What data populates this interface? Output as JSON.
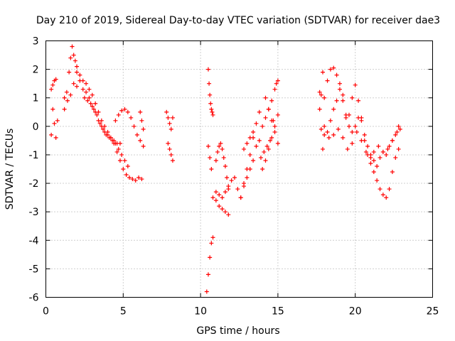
{
  "chart_data": {
    "type": "scatter",
    "title": "Day 210 of 2019, Sidereal Day-to-day VTEC variation (SDTVAR) for receiver dae3",
    "xlabel": "GPS time / hours",
    "ylabel": "SDTVAR / TECUs",
    "xlim": [
      0,
      25
    ],
    "ylim": [
      -6,
      3
    ],
    "xticks": [
      0,
      5,
      10,
      15,
      20,
      25
    ],
    "yticks": [
      -6,
      -5,
      -4,
      -3,
      -2,
      -1,
      0,
      1,
      2,
      3
    ],
    "grid": true,
    "marker": "+",
    "color": "#ff0000",
    "series": [
      {
        "name": "SDTVAR",
        "tracks": [
          {
            "x": [
              0.35,
              0.45,
              0.55,
              0.65,
              0.75
            ],
            "y": [
              -0.3,
              0.6,
              0.1,
              -0.4,
              0.2
            ]
          },
          {
            "x": [
              0.35,
              0.45,
              0.55,
              0.65
            ],
            "y": [
              1.3,
              1.45,
              1.6,
              1.65
            ]
          },
          {
            "x": [
              1.2,
              1.35,
              1.5,
              1.6,
              1.7,
              1.8,
              1.9,
              2.0
            ],
            "y": [
              0.6,
              1.2,
              1.9,
              2.4,
              2.8,
              2.5,
              2.3,
              2.1
            ]
          },
          {
            "x": [
              1.2,
              1.4,
              1.6,
              1.8,
              2.0,
              2.2,
              2.4,
              2.6,
              2.8,
              3.0,
              3.2,
              3.4,
              3.6,
              3.8,
              4.0,
              4.2,
              4.4,
              4.6,
              4.8,
              5.0,
              5.2,
              5.4,
              5.6,
              5.8,
              6.0,
              6.2
            ],
            "y": [
              1.0,
              0.9,
              1.1,
              1.5,
              1.9,
              1.8,
              1.6,
              1.5,
              1.3,
              1.1,
              0.8,
              0.5,
              0.2,
              0.0,
              -0.2,
              -0.4,
              -0.6,
              -0.9,
              -1.2,
              -1.5,
              -1.7,
              -1.8,
              -1.85,
              -1.9,
              -1.8,
              -1.85
            ]
          },
          {
            "x": [
              2.0,
              2.2,
              2.4,
              2.6,
              2.8,
              3.0,
              3.2,
              3.4,
              3.6,
              3.8,
              4.0,
              4.2,
              4.4,
              4.6,
              4.8
            ],
            "y": [
              1.4,
              1.6,
              1.3,
              1.2,
              1.0,
              0.7,
              0.5,
              0.2,
              0.0,
              -0.2,
              -0.3,
              -0.4,
              -0.5,
              -0.6,
              -0.6
            ]
          },
          {
            "x": [
              2.5,
              2.7,
              2.9,
              3.1,
              3.3,
              3.5,
              3.7,
              3.9,
              4.1,
              4.3,
              4.5,
              4.7,
              4.9,
              5.1,
              5.3
            ],
            "y": [
              1.0,
              0.9,
              0.8,
              0.6,
              0.4,
              0.1,
              -0.1,
              -0.3,
              -0.4,
              -0.5,
              -0.6,
              -0.8,
              -1.0,
              -1.2,
              -1.4
            ]
          },
          {
            "x": [
              4.5,
              4.7,
              4.9,
              5.1,
              5.3,
              5.5,
              5.7,
              5.9,
              6.1,
              6.3
            ],
            "y": [
              0.2,
              0.4,
              0.55,
              0.6,
              0.5,
              0.3,
              0.0,
              -0.3,
              -0.5,
              -0.7
            ]
          },
          {
            "x": [
              6.1,
              6.2,
              6.3
            ],
            "y": [
              0.5,
              0.2,
              -0.1
            ]
          },
          {
            "x": [
              7.8,
              7.9,
              8.0,
              8.1,
              8.2
            ],
            "y": [
              0.5,
              0.3,
              0.1,
              -0.1,
              0.3
            ]
          },
          {
            "x": [
              7.9,
              8.0,
              8.1,
              8.2
            ],
            "y": [
              -0.6,
              -0.8,
              -1.0,
              -1.2
            ]
          },
          {
            "x": [
              10.5,
              10.55,
              10.6,
              10.65,
              10.7,
              10.75,
              10.8
            ],
            "y": [
              2.0,
              1.5,
              1.1,
              0.8,
              0.6,
              0.5,
              0.4
            ]
          },
          {
            "x": [
              10.5,
              10.6,
              10.7
            ],
            "y": [
              -0.7,
              -1.1,
              -1.5
            ]
          },
          {
            "x": [
              10.4,
              10.5,
              10.6,
              10.7,
              10.8
            ],
            "y": [
              -5.8,
              -5.2,
              -4.6,
              -4.1,
              -3.9
            ]
          },
          {
            "x": [
              10.8,
              11.0,
              11.2,
              11.4,
              11.6,
              11.8,
              12.0,
              12.2,
              12.4,
              12.6,
              12.8,
              13.0,
              13.2,
              13.4,
              13.6,
              13.8,
              14.0,
              14.2,
              14.4,
              14.6,
              14.8,
              15.0
            ],
            "y": [
              -2.5,
              -2.3,
              -2.4,
              -2.5,
              -2.3,
              -2.2,
              -1.9,
              -1.8,
              -2.2,
              -2.5,
              -2.1,
              -1.8,
              -1.5,
              -1.2,
              -0.7,
              -0.5,
              0.0,
              0.3,
              0.6,
              0.9,
              1.3,
              1.6
            ]
          },
          {
            "x": [
              11.0,
              11.2,
              11.4,
              11.6,
              11.8
            ],
            "y": [
              -2.6,
              -2.8,
              -2.9,
              -3.0,
              -3.1
            ]
          },
          {
            "x": [
              11.0,
              11.1,
              11.2,
              11.3,
              11.4,
              11.5,
              11.6,
              11.7,
              11.8
            ],
            "y": [
              -1.2,
              -0.9,
              -0.7,
              -0.6,
              -0.8,
              -1.1,
              -1.4,
              -1.8,
              -2.1
            ]
          },
          {
            "x": [
              12.6,
              12.8,
              13.0,
              13.2,
              13.4,
              13.6,
              13.8
            ],
            "y": [
              -2.5,
              -2.0,
              -1.5,
              -1.0,
              -0.4,
              0.1,
              0.5
            ]
          },
          {
            "x": [
              12.8,
              13.0,
              13.2,
              13.4
            ],
            "y": [
              -0.8,
              -0.6,
              -0.4,
              -0.2
            ]
          },
          {
            "x": [
              14.0,
              14.2,
              14.4,
              14.6,
              14.8,
              15.0
            ],
            "y": [
              -1.5,
              -1.2,
              -0.8,
              -0.4,
              0.0,
              0.4
            ]
          },
          {
            "x": [
              13.9,
              14.1,
              14.3,
              14.5,
              14.7,
              14.9
            ],
            "y": [
              -1.1,
              -0.9,
              -0.7,
              -0.5,
              0.2,
              1.5
            ]
          },
          {
            "x": [
              14.2,
              14.4,
              14.6,
              14.8,
              15.0
            ],
            "y": [
              1.0,
              0.6,
              0.2,
              -0.2,
              -0.6
            ]
          },
          {
            "x": [
              17.7,
              17.8,
              17.9
            ],
            "y": [
              1.2,
              1.1,
              1.9
            ]
          },
          {
            "x": [
              17.7,
              17.8,
              17.9
            ],
            "y": [
              0.6,
              -0.1,
              -0.8
            ]
          },
          {
            "x": [
              18.0,
              18.2,
              18.4,
              18.6,
              18.8,
              19.0,
              19.2,
              19.4,
              19.6,
              19.8,
              20.0,
              20.2,
              20.4,
              20.6,
              20.8,
              21.0,
              21.2,
              21.4,
              21.6,
              21.8,
              22.0,
              22.2,
              22.4,
              22.6,
              22.8
            ],
            "y": [
              1.0,
              1.6,
              2.0,
              2.05,
              1.8,
              1.5,
              0.9,
              0.3,
              0.4,
              1.0,
              1.45,
              0.9,
              0.3,
              -0.5,
              -1.0,
              -1.3,
              -1.6,
              -1.9,
              -2.2,
              -2.4,
              -2.5,
              -2.2,
              -1.6,
              -1.1,
              -0.8
            ]
          },
          {
            "x": [
              18.0,
              18.2,
              18.4,
              18.6,
              18.8,
              19.0,
              19.2,
              19.4,
              19.6,
              19.8,
              20.0,
              20.2,
              20.4,
              20.6,
              20.8,
              21.0,
              21.2,
              21.4,
              21.6,
              21.8,
              22.0,
              22.2,
              22.4,
              22.6,
              22.8
            ],
            "y": [
              0.0,
              -0.2,
              0.2,
              0.6,
              0.9,
              1.3,
              1.1,
              0.4,
              0.0,
              -0.2,
              0.0,
              0.3,
              0.2,
              -0.3,
              -0.7,
              -1.0,
              -1.2,
              -1.4,
              -1.1,
              -0.9,
              -1.0,
              -0.7,
              -0.5,
              -0.3,
              0.0
            ]
          },
          {
            "x": [
              18.0,
              18.3,
              18.6,
              18.9,
              19.2,
              19.5,
              19.8,
              20.1,
              20.4,
              20.7,
              21.0
            ],
            "y": [
              -0.3,
              -0.4,
              -0.3,
              -0.1,
              -0.4,
              -0.8,
              -0.6,
              -0.2,
              -0.5,
              -0.9,
              -1.1
            ]
          },
          {
            "x": [
              21.2,
              21.5,
              21.8,
              22.1,
              22.4,
              22.7,
              22.9
            ],
            "y": [
              -0.9,
              -0.7,
              -0.9,
              -0.8,
              -0.5,
              -0.2,
              -0.1
            ]
          }
        ]
      }
    ]
  }
}
